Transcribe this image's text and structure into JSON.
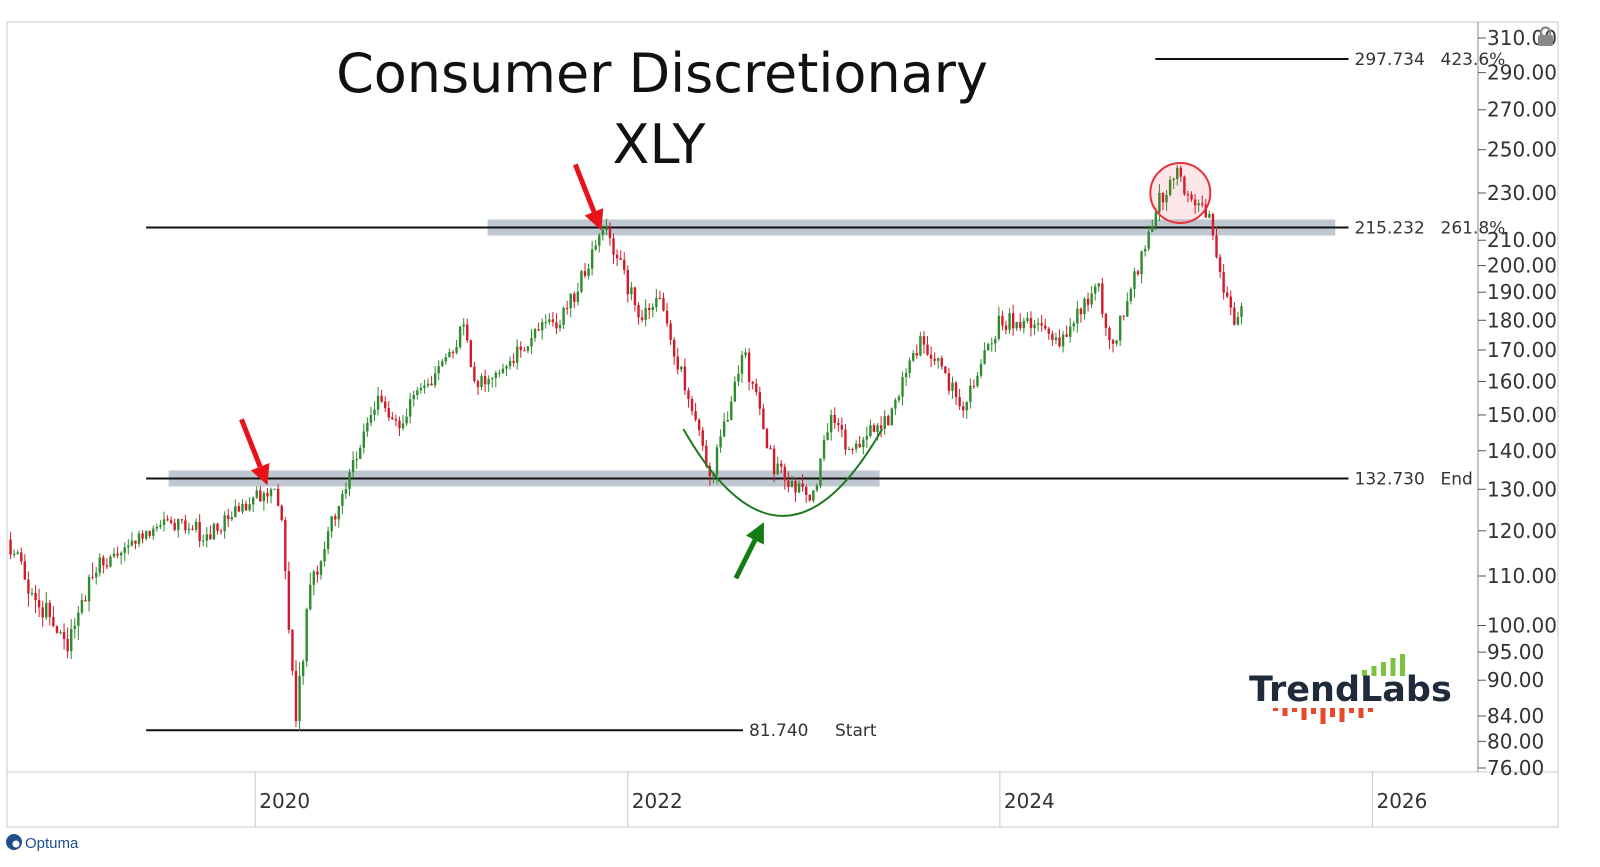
{
  "chart_data": {
    "type": "candlestick",
    "title": "Consumer Discretionary",
    "subtitle": "XLY",
    "scale": "log",
    "ylim": [
      76,
      310
    ],
    "xlim": [
      "2018-09-01",
      "2026-12-31"
    ],
    "y_tick_labels": [
      "310.00",
      "290.00",
      "270.00",
      "250.00",
      "230.00",
      "210.00",
      "200.00",
      "190.00",
      "180.00",
      "170.00",
      "160.00",
      "150.00",
      "140.00",
      "130.00",
      "120.00",
      "110.00",
      "100.00",
      "95.00",
      "90.00",
      "84.00",
      "80.00",
      "76.00"
    ],
    "y_ticks": [
      310,
      290,
      270,
      250,
      230,
      210,
      200,
      190,
      180,
      170,
      160,
      150,
      140,
      130,
      120,
      110,
      100,
      95,
      90,
      84,
      80,
      76
    ],
    "x_tick_labels": [
      "2020",
      "2022",
      "2024",
      "2026"
    ],
    "x_ticks": [
      "2020-01-01",
      "2022-01-01",
      "2024-01-01",
      "2026-01-01"
    ],
    "grid": false,
    "up_color": "#2e8b2e",
    "down_color": "#d11a2a",
    "price_path": [
      [
        "2018-09-01",
        118
      ],
      [
        "2018-12-20",
        96
      ],
      [
        "2019-03-01",
        112
      ],
      [
        "2019-07-20",
        122
      ],
      [
        "2019-10-01",
        119
      ],
      [
        "2020-01-20",
        130
      ],
      [
        "2020-02-20",
        127
      ],
      [
        "2020-03-20",
        84
      ],
      [
        "2020-04-15",
        105
      ],
      [
        "2020-06-15",
        128
      ],
      [
        "2020-09-01",
        155
      ],
      [
        "2020-09-25",
        146
      ],
      [
        "2020-12-31",
        164
      ],
      [
        "2021-02-15",
        178
      ],
      [
        "2021-03-10",
        158
      ],
      [
        "2021-06-01",
        170
      ],
      [
        "2021-09-01",
        183
      ],
      [
        "2021-11-15",
        215
      ],
      [
        "2022-01-25",
        182
      ],
      [
        "2022-03-01",
        188
      ],
      [
        "2022-06-15",
        133
      ],
      [
        "2022-08-15",
        170
      ],
      [
        "2022-10-15",
        136
      ],
      [
        "2022-12-28",
        127
      ],
      [
        "2023-02-01",
        148
      ],
      [
        "2023-03-15",
        140
      ],
      [
        "2023-06-01",
        150
      ],
      [
        "2023-07-30",
        174
      ],
      [
        "2023-10-25",
        152
      ],
      [
        "2023-12-31",
        180
      ],
      [
        "2024-04-10",
        177
      ],
      [
        "2024-05-01",
        172
      ],
      [
        "2024-07-10",
        193
      ],
      [
        "2024-08-05",
        170
      ],
      [
        "2024-09-30",
        200
      ],
      [
        "2024-11-10",
        228
      ],
      [
        "2024-12-15",
        238
      ],
      [
        "2025-01-20",
        225
      ],
      [
        "2025-02-10",
        222
      ],
      [
        "2025-03-15",
        193
      ],
      [
        "2025-04-08",
        176
      ],
      [
        "2025-04-25",
        190
      ]
    ],
    "horizontal_levels": [
      {
        "value": 297.734,
        "label": "297.734",
        "tag": "423.6%",
        "start": "2024-11-01",
        "end": "2025-11-15"
      },
      {
        "value": 215.232,
        "label": "215.232",
        "tag": "261.8%",
        "start": "2019-06-01",
        "end": "2025-11-15"
      },
      {
        "value": 132.73,
        "label": "132.730",
        "tag": "End",
        "start": "2019-06-01",
        "end": "2025-11-15"
      },
      {
        "value": 81.74,
        "label": "81.740",
        "tag": "Start",
        "start": "2019-06-01",
        "end": "2022-08-15"
      }
    ],
    "zones": [
      {
        "value": 215.232,
        "start": "2021-04-01",
        "end": "2025-10-20"
      },
      {
        "value": 132.73,
        "start": "2019-07-15",
        "end": "2023-05-10"
      }
    ],
    "annotations": [
      {
        "kind": "arrow-down",
        "color": "#e8131a",
        "date": "2020-01-25",
        "value": 131
      },
      {
        "kind": "arrow-down",
        "color": "#e8131a",
        "date": "2021-11-10",
        "value": 214
      },
      {
        "kind": "arrow-up",
        "color": "#137c13",
        "date": "2022-09-25",
        "value": 122
      },
      {
        "kind": "cup",
        "color": "#1f7a1f",
        "start": "2022-04-20",
        "end": "2023-05-15",
        "top_value": 146,
        "bottom_value": 124
      },
      {
        "kind": "circle",
        "color": "#e5323a",
        "date": "2024-12-20",
        "value": 230
      }
    ]
  },
  "branding": {
    "logo_text": "TrendLabs",
    "footer_text": "Optuma",
    "brand_bar_color": "#7cc242",
    "brand_red_color": "#e8482a"
  }
}
